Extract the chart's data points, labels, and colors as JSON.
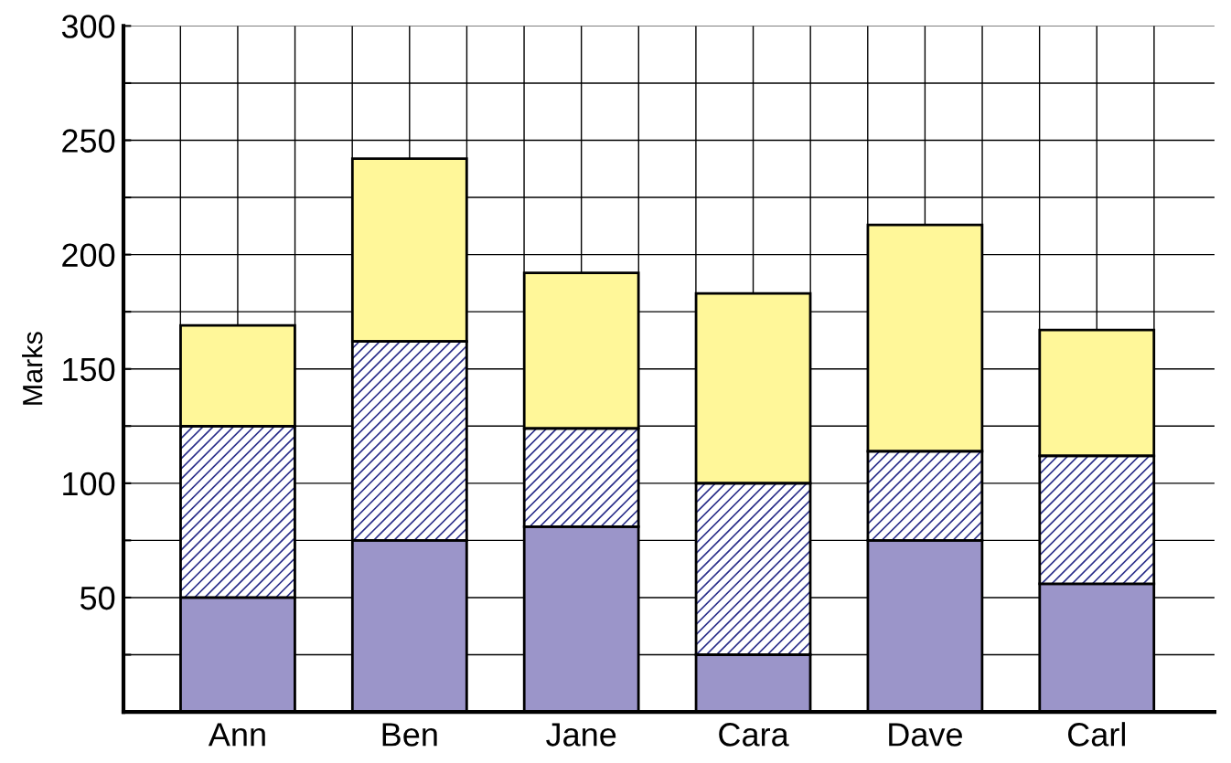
{
  "chart_data": {
    "type": "bar",
    "stacked": true,
    "ylabel": "Marks",
    "categories": [
      "Ann",
      "Ben",
      "Jane",
      "Cara",
      "Dave",
      "Carl"
    ],
    "series": [
      {
        "color": "#9b95c9",
        "values": [
          50,
          75,
          81,
          25,
          75,
          56
        ]
      },
      {
        "color": "#2b2f8a",
        "values": [
          75,
          87,
          43,
          75,
          39,
          56
        ]
      },
      {
        "color": "#fff799",
        "values": [
          44,
          80,
          68,
          83,
          99,
          55
        ]
      }
    ],
    "ylim": [
      0,
      300
    ],
    "yticks": [
      {
        "value": 25,
        "label": null
      },
      50,
      {
        "value": 75,
        "label": null
      },
      100,
      {
        "value": 125,
        "label": null
      },
      150,
      {
        "value": 175,
        "label": null
      },
      200,
      {
        "value": 225,
        "label": null
      },
      250,
      {
        "value": 275,
        "label": null
      },
      300
    ],
    "grid": true
  }
}
